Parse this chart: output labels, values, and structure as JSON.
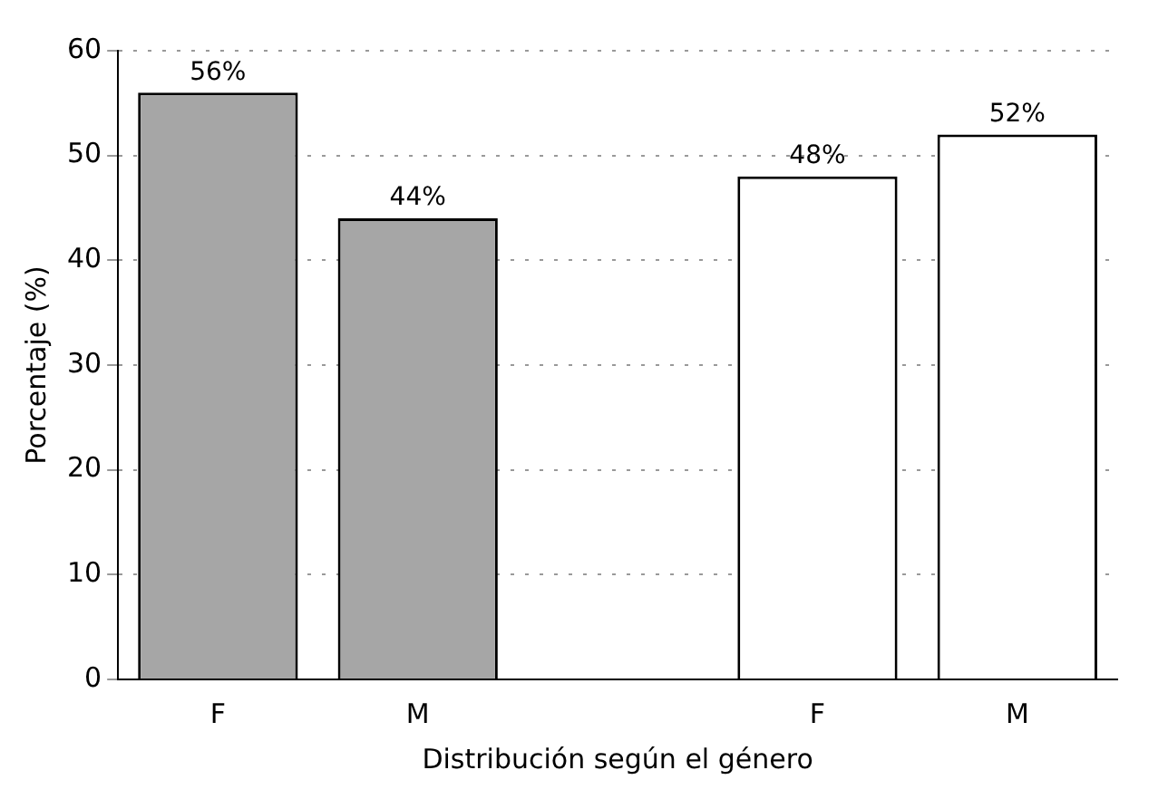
{
  "chart_data": {
    "type": "bar",
    "xlabel": "Distribución según el género",
    "ylabel": "Porcentaje (%)",
    "categories": [
      "F",
      "M",
      null,
      "F",
      "M"
    ],
    "series": [
      {
        "color": "#a6a6a6",
        "values": [
          56,
          44,
          null,
          null,
          null
        ],
        "value_labels": [
          "56%",
          "44%",
          null,
          null,
          null
        ]
      },
      {
        "color": "#ffffff",
        "values": [
          null,
          null,
          null,
          48,
          52
        ],
        "value_labels": [
          null,
          null,
          null,
          "48%",
          "52%"
        ]
      }
    ],
    "ylim": [
      0,
      60
    ],
    "yticks": [
      0,
      10,
      20,
      30,
      40,
      50,
      60
    ],
    "grid": "y",
    "stacked": true
  }
}
